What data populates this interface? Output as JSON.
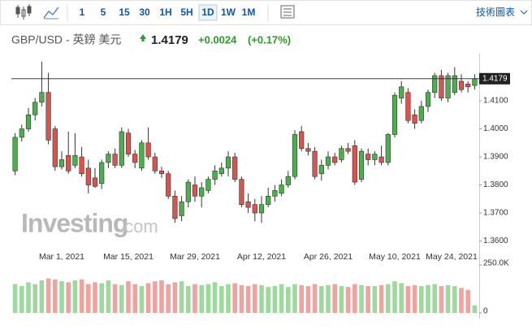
{
  "toolbar": {
    "buttons": [
      "1",
      "5",
      "15",
      "30",
      "1H",
      "5H",
      "1D",
      "1W",
      "1M"
    ],
    "selected_index": 6,
    "chart_link": "技術圖表"
  },
  "header": {
    "pair": "GBP/USD - 英鎊 美元",
    "price": "1.4179",
    "change": "+0.0024",
    "change_pct": "(+0.17%)"
  },
  "watermark": {
    "main": "Investing",
    "suffix": ".com"
  },
  "chart_data": {
    "type": "candlestick",
    "categories": [
      null,
      null,
      null,
      null,
      null,
      null,
      null,
      "Mar 1, 2021",
      null,
      null,
      null,
      null,
      null,
      null,
      null,
      null,
      null,
      "Mar 15, 2021",
      null,
      null,
      null,
      null,
      null,
      null,
      null,
      null,
      null,
      "Mar 29, 2021",
      null,
      null,
      null,
      null,
      null,
      null,
      null,
      null,
      null,
      "Apr 12, 2021",
      null,
      null,
      null,
      null,
      null,
      null,
      null,
      null,
      null,
      "Apr 26, 2021",
      null,
      null,
      null,
      null,
      null,
      null,
      null,
      null,
      null,
      "May 10, 2021",
      null,
      null,
      null,
      null,
      null,
      null,
      null,
      null,
      null,
      "May 24, 2021",
      null,
      null
    ],
    "open": [
      1.385,
      1.397,
      1.4,
      1.405,
      1.4095,
      1.413,
      1.4,
      1.3865,
      1.3905,
      1.387,
      1.39,
      1.386,
      1.3825,
      1.3805,
      1.388,
      1.391,
      1.387,
      1.3985,
      1.391,
      1.386,
      1.395,
      1.39,
      1.385,
      1.384,
      1.376,
      1.369,
      1.374,
      1.38,
      1.376,
      1.378,
      1.382,
      1.384,
      1.386,
      1.39,
      1.382,
      1.374,
      1.373,
      1.37,
      1.373,
      1.376,
      1.377,
      1.38,
      1.383,
      1.399,
      1.393,
      1.392,
      1.384,
      1.387,
      1.39,
      1.389,
      1.393,
      1.394,
      1.382,
      1.391,
      1.389,
      1.39,
      1.388,
      1.398,
      1.411,
      1.413,
      1.405,
      1.403,
      1.408,
      1.413,
      1.419,
      1.411,
      1.413,
      1.417,
      1.416,
      1.4155
    ],
    "high": [
      1.3985,
      1.4015,
      1.4075,
      1.411,
      1.424,
      1.42,
      1.401,
      1.392,
      1.399,
      1.3985,
      1.3935,
      1.389,
      1.386,
      1.389,
      1.392,
      1.393,
      1.4005,
      1.4,
      1.3925,
      1.396,
      1.4005,
      1.3915,
      1.3865,
      1.385,
      1.378,
      1.376,
      1.382,
      1.383,
      1.381,
      1.383,
      1.387,
      1.388,
      1.392,
      1.3915,
      1.383,
      1.377,
      1.375,
      1.376,
      1.379,
      1.38,
      1.382,
      1.385,
      1.3995,
      1.401,
      1.395,
      1.3935,
      1.389,
      1.392,
      1.3915,
      1.394,
      1.395,
      1.396,
      1.393,
      1.393,
      1.392,
      1.394,
      1.3985,
      1.413,
      1.417,
      1.4145,
      1.407,
      1.41,
      1.414,
      1.42,
      1.421,
      1.42,
      1.422,
      1.4195,
      1.417,
      1.4195
    ],
    "low": [
      1.3835,
      1.3955,
      1.399,
      1.403,
      1.408,
      1.3945,
      1.385,
      1.3855,
      1.384,
      1.386,
      1.383,
      1.377,
      1.379,
      1.3785,
      1.386,
      1.386,
      1.386,
      1.39,
      1.386,
      1.385,
      1.389,
      1.384,
      1.3825,
      1.375,
      1.3665,
      1.367,
      1.372,
      1.374,
      1.372,
      1.377,
      1.38,
      1.383,
      1.383,
      1.381,
      1.372,
      1.37,
      1.367,
      1.3665,
      1.372,
      1.374,
      1.376,
      1.379,
      1.382,
      1.392,
      1.3905,
      1.382,
      1.3815,
      1.3855,
      1.387,
      1.388,
      1.391,
      1.38,
      1.381,
      1.387,
      1.387,
      1.387,
      1.387,
      1.397,
      1.409,
      1.402,
      1.4,
      1.402,
      1.406,
      1.411,
      1.41,
      1.4095,
      1.412,
      1.413,
      1.413,
      1.414
    ],
    "close": [
      1.397,
      1.4,
      1.405,
      1.4095,
      1.413,
      1.396,
      1.3865,
      1.389,
      1.385,
      1.3905,
      1.384,
      1.38,
      1.3795,
      1.388,
      1.391,
      1.387,
      1.399,
      1.391,
      1.388,
      1.395,
      1.39,
      1.385,
      1.384,
      1.376,
      1.368,
      1.374,
      1.381,
      1.376,
      1.379,
      1.382,
      1.385,
      1.386,
      1.39,
      1.382,
      1.373,
      1.372,
      1.37,
      1.373,
      1.376,
      1.378,
      1.38,
      1.383,
      1.398,
      1.393,
      1.392,
      1.383,
      1.387,
      1.39,
      1.388,
      1.393,
      1.392,
      1.381,
      1.392,
      1.389,
      1.391,
      1.388,
      1.398,
      1.412,
      1.415,
      1.403,
      1.402,
      1.408,
      1.413,
      1.419,
      1.411,
      1.419,
      1.419,
      1.414,
      1.415,
      1.4179
    ],
    "volume": [
      150000,
      140000,
      160000,
      150000,
      170000,
      180000,
      175000,
      165000,
      160000,
      170000,
      175000,
      150000,
      160000,
      155000,
      170000,
      150000,
      145000,
      165000,
      150000,
      140000,
      155000,
      165000,
      170000,
      150000,
      160000,
      165000,
      140000,
      150000,
      145000,
      150000,
      160000,
      140000,
      150000,
      155000,
      145000,
      140000,
      150000,
      145000,
      135000,
      140000,
      150000,
      135000,
      150000,
      145000,
      140000,
      150000,
      140000,
      145000,
      150000,
      140000,
      135000,
      150000,
      145000,
      140000,
      140000,
      145000,
      150000,
      165000,
      155000,
      140000,
      145000,
      140000,
      145000,
      150000,
      140000,
      145000,
      140000,
      130000,
      120000,
      40000
    ],
    "up_color": "#4cae4c",
    "down_color": "#d9534f",
    "up_volume_color": "#9fd89f",
    "down_volume_color": "#eea3a1",
    "ylim": [
      1.3555,
      1.4251
    ],
    "yticks": [
      {
        "value": 1.41,
        "label": "1.4100"
      },
      {
        "value": 1.4,
        "label": "1.4000"
      },
      {
        "value": 1.39,
        "label": "1.3900"
      },
      {
        "value": 1.38,
        "label": "1.3800"
      },
      {
        "value": 1.37,
        "label": "1.3700"
      },
      {
        "value": 1.36,
        "label": "1.3600"
      }
    ],
    "volume_lim": [
      0,
      267000
    ],
    "volume_ticks": [
      {
        "value": 250000,
        "label": "250.0K"
      },
      0
    ],
    "last_price": {
      "value": 1.4179,
      "label": "1.4179"
    }
  }
}
